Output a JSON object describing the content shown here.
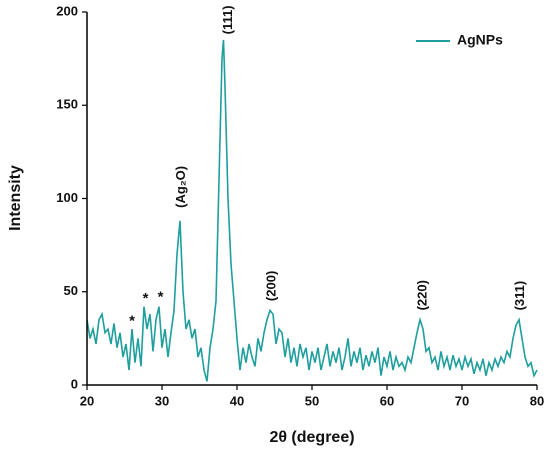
{
  "chart_data": {
    "type": "line",
    "x_label": "2θ (degree)",
    "y_label": "Intensity",
    "xlim": [
      20,
      80
    ],
    "ylim": [
      0,
      200
    ],
    "xticks": [
      20,
      30,
      40,
      50,
      60,
      70,
      80
    ],
    "yticks": [
      0,
      50,
      100,
      150,
      200
    ],
    "legend": "upper right",
    "grid": false,
    "x": [
      20.0,
      20.4,
      20.8,
      21.2,
      21.6,
      22.0,
      22.4,
      22.8,
      23.2,
      23.6,
      24.0,
      24.4,
      24.8,
      25.2,
      25.6,
      26.0,
      26.4,
      26.8,
      27.2,
      27.6,
      28.0,
      28.4,
      28.8,
      29.2,
      29.6,
      30.0,
      30.4,
      30.8,
      31.2,
      31.6,
      32.0,
      32.4,
      32.8,
      33.2,
      33.6,
      34.0,
      34.4,
      34.8,
      35.2,
      35.6,
      36.0,
      36.4,
      36.8,
      37.2,
      37.6,
      38.0,
      38.2,
      38.4,
      38.8,
      39.2,
      39.6,
      40.0,
      40.4,
      40.8,
      41.2,
      41.6,
      42.0,
      42.4,
      42.8,
      43.2,
      43.6,
      44.0,
      44.4,
      44.8,
      45.2,
      45.6,
      46.0,
      46.4,
      46.8,
      47.2,
      47.6,
      48.0,
      48.4,
      48.8,
      49.2,
      49.6,
      50.0,
      50.4,
      50.8,
      51.2,
      51.6,
      52.0,
      52.4,
      52.8,
      53.2,
      53.6,
      54.0,
      54.4,
      54.8,
      55.2,
      55.6,
      56.0,
      56.4,
      56.8,
      57.2,
      57.6,
      58.0,
      58.4,
      58.8,
      59.2,
      59.6,
      60.0,
      60.4,
      60.8,
      61.2,
      61.6,
      62.0,
      62.4,
      62.8,
      63.2,
      63.6,
      64.0,
      64.4,
      64.8,
      65.2,
      65.6,
      66.0,
      66.4,
      66.8,
      67.2,
      67.6,
      68.0,
      68.4,
      68.8,
      69.2,
      69.6,
      70.0,
      70.4,
      70.8,
      71.2,
      71.6,
      72.0,
      72.4,
      72.8,
      73.2,
      73.6,
      74.0,
      74.4,
      74.8,
      75.2,
      75.6,
      76.0,
      76.4,
      76.8,
      77.2,
      77.6,
      78.0,
      78.4,
      78.8,
      79.2,
      79.6,
      80.0
    ],
    "series": [
      {
        "name": "AgNPs",
        "color": "#1f9e9e",
        "values": [
          35,
          25,
          30,
          22,
          35,
          38,
          28,
          30,
          22,
          33,
          20,
          28,
          15,
          22,
          8,
          30,
          12,
          25,
          10,
          42,
          30,
          38,
          18,
          35,
          42,
          20,
          30,
          15,
          28,
          40,
          70,
          88,
          50,
          30,
          35,
          25,
          30,
          15,
          20,
          8,
          2,
          20,
          30,
          45,
          110,
          175,
          185,
          160,
          100,
          65,
          45,
          25,
          8,
          20,
          12,
          22,
          15,
          10,
          25,
          18,
          28,
          35,
          40,
          38,
          22,
          30,
          28,
          15,
          25,
          12,
          20,
          10,
          22,
          15,
          20,
          8,
          18,
          12,
          20,
          8,
          15,
          22,
          10,
          18,
          12,
          20,
          8,
          15,
          25,
          10,
          18,
          12,
          20,
          8,
          16,
          10,
          18,
          12,
          20,
          5,
          15,
          10,
          18,
          8,
          15,
          10,
          12,
          8,
          15,
          12,
          20,
          28,
          35,
          30,
          18,
          20,
          12,
          15,
          8,
          18,
          10,
          15,
          8,
          16,
          10,
          14,
          8,
          15,
          10,
          14,
          6,
          12,
          8,
          14,
          5,
          12,
          8,
          14,
          10,
          15,
          12,
          18,
          15,
          25,
          32,
          35,
          25,
          15,
          10,
          12,
          5,
          8
        ]
      }
    ],
    "annotations": [
      {
        "text": "(111)",
        "x": 38.9,
        "y": 188
      },
      {
        "text": "(Ag₂O)",
        "x": 32.6,
        "y": 95
      },
      {
        "text": "(200)",
        "x": 44.7,
        "y": 45
      },
      {
        "text": "(220)",
        "x": 64.8,
        "y": 40
      },
      {
        "text": "(311)",
        "x": 77.8,
        "y": 40
      },
      {
        "text": "*",
        "x": 26.0,
        "y": 34
      },
      {
        "text": "*",
        "x": 27.8,
        "y": 46
      },
      {
        "text": "*",
        "x": 29.8,
        "y": 47
      }
    ]
  }
}
